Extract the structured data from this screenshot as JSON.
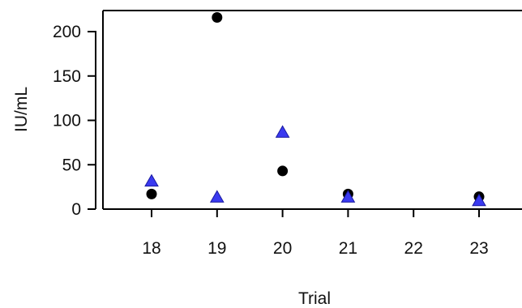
{
  "chart_data": {
    "type": "scatter",
    "xlabel": "Trial",
    "ylabel": "IU/mL",
    "xlim": [
      17.2,
      23.3
    ],
    "ylim": [
      0,
      225
    ],
    "x_ticks": [
      18,
      19,
      20,
      21,
      22,
      23
    ],
    "y_ticks": [
      0,
      50,
      100,
      150,
      200
    ],
    "grid": false,
    "series": [
      {
        "marker": "circle",
        "color": "#000000",
        "points": [
          {
            "x": 18,
            "y": 17
          },
          {
            "x": 19,
            "y": 216
          },
          {
            "x": 20,
            "y": 43
          },
          {
            "x": 21,
            "y": 17
          },
          {
            "x": 23,
            "y": 14
          }
        ]
      },
      {
        "marker": "triangle",
        "color": "#3a3af0",
        "points": [
          {
            "x": 18,
            "y": 31
          },
          {
            "x": 19,
            "y": 13
          },
          {
            "x": 20,
            "y": 86
          },
          {
            "x": 21,
            "y": 13
          },
          {
            "x": 23,
            "y": 9
          }
        ]
      }
    ]
  }
}
